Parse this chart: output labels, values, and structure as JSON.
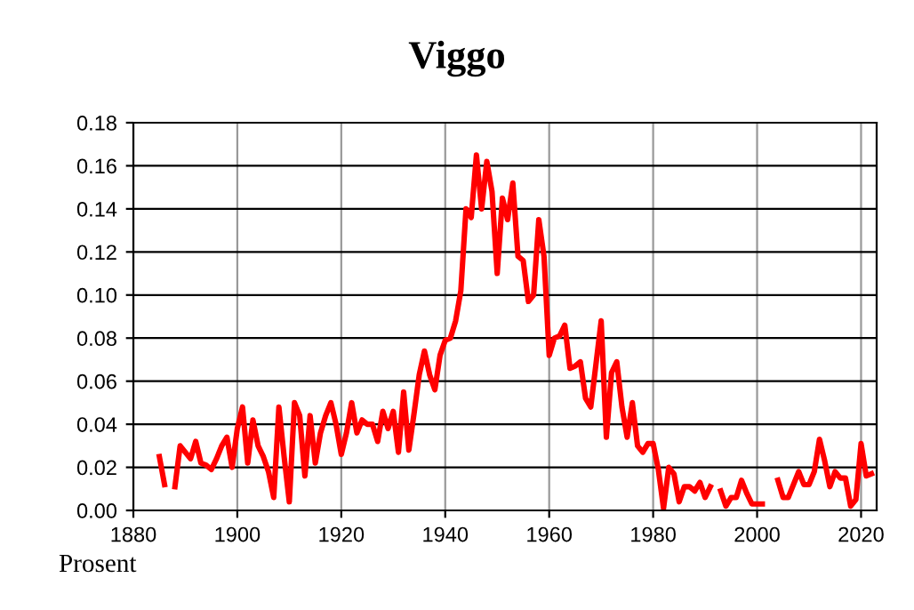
{
  "chart_data": {
    "type": "line",
    "title": "Viggo",
    "ylabel": "Prosent",
    "x": [
      1885,
      1886,
      1887,
      1888,
      1889,
      1890,
      1891,
      1892,
      1893,
      1894,
      1895,
      1896,
      1897,
      1898,
      1899,
      1900,
      1901,
      1902,
      1903,
      1904,
      1905,
      1906,
      1907,
      1908,
      1909,
      1910,
      1911,
      1912,
      1913,
      1914,
      1915,
      1916,
      1917,
      1918,
      1919,
      1920,
      1921,
      1922,
      1923,
      1924,
      1925,
      1926,
      1927,
      1928,
      1929,
      1930,
      1931,
      1932,
      1933,
      1934,
      1935,
      1936,
      1937,
      1938,
      1939,
      1940,
      1941,
      1942,
      1943,
      1944,
      1945,
      1946,
      1947,
      1948,
      1949,
      1950,
      1951,
      1952,
      1953,
      1954,
      1955,
      1956,
      1957,
      1958,
      1959,
      1960,
      1961,
      1962,
      1963,
      1964,
      1965,
      1966,
      1967,
      1968,
      1969,
      1970,
      1971,
      1972,
      1973,
      1974,
      1975,
      1976,
      1977,
      1978,
      1979,
      1980,
      1981,
      1982,
      1983,
      1984,
      1985,
      1986,
      1987,
      1988,
      1989,
      1990,
      1991,
      1992,
      1993,
      1994,
      1995,
      1996,
      1997,
      1998,
      1999,
      2000,
      2001,
      2002,
      2003,
      2004,
      2005,
      2006,
      2007,
      2008,
      2009,
      2010,
      2011,
      2012,
      2013,
      2014,
      2015,
      2016,
      2017,
      2018,
      2019,
      2020,
      2021,
      2022
    ],
    "series": [
      {
        "color": "#ff0000",
        "values": [
          0.025,
          0.012,
          null,
          0.011,
          0.03,
          0.027,
          0.024,
          0.032,
          0.022,
          0.021,
          0.019,
          0.024,
          0.03,
          0.034,
          0.02,
          0.038,
          0.048,
          0.022,
          0.042,
          0.03,
          0.025,
          0.018,
          0.006,
          0.048,
          0.025,
          0.004,
          0.05,
          0.044,
          0.016,
          0.044,
          0.022,
          0.036,
          0.044,
          0.05,
          0.04,
          0.026,
          0.036,
          0.05,
          0.036,
          0.042,
          0.04,
          0.04,
          0.032,
          0.046,
          0.038,
          0.046,
          0.027,
          0.055,
          0.028,
          0.045,
          0.063,
          0.074,
          0.063,
          0.056,
          0.072,
          0.079,
          0.08,
          0.088,
          0.102,
          0.14,
          0.136,
          0.165,
          0.14,
          0.162,
          0.148,
          0.11,
          0.145,
          0.135,
          0.152,
          0.118,
          0.116,
          0.097,
          0.1,
          0.135,
          0.118,
          0.072,
          0.08,
          0.081,
          0.086,
          0.066,
          0.067,
          0.069,
          0.052,
          0.048,
          0.068,
          0.088,
          0.034,
          0.064,
          0.069,
          0.048,
          0.034,
          0.05,
          0.03,
          0.027,
          0.031,
          0.031,
          0.019,
          0.001,
          0.02,
          0.017,
          0.004,
          0.011,
          0.011,
          0.009,
          0.013,
          0.006,
          0.011,
          null,
          0.009,
          0.002,
          0.006,
          0.006,
          0.014,
          0.008,
          0.003,
          0.003,
          0.003,
          null,
          null,
          0.014,
          0.006,
          0.006,
          0.012,
          0.018,
          0.012,
          0.012,
          0.018,
          0.033,
          0.023,
          0.011,
          0.018,
          0.015,
          0.015,
          0.002,
          0.005,
          0.031,
          0.016,
          0.017
        ]
      }
    ],
    "xlim": [
      1880,
      2023
    ],
    "ylim": [
      0,
      0.18
    ],
    "xticks": [
      1880,
      1900,
      1920,
      1940,
      1960,
      1980,
      2000,
      2020
    ],
    "yticks": [
      {
        "value": 0,
        "label": "0.00"
      },
      {
        "value": 0.02,
        "label": "0.02"
      },
      {
        "value": 0.04,
        "label": "0.04"
      },
      {
        "value": 0.06,
        "label": "0.06"
      },
      {
        "value": 0.08,
        "label": "0.08"
      },
      {
        "value": 0.1,
        "label": "0.10"
      },
      {
        "value": 0.12,
        "label": "0.12"
      },
      {
        "value": 0.14,
        "label": "0.14"
      },
      {
        "value": 0.16,
        "label": "0.16"
      },
      {
        "value": 0.18,
        "label": "0.18"
      }
    ],
    "grid": true,
    "line_style": "solid"
  }
}
